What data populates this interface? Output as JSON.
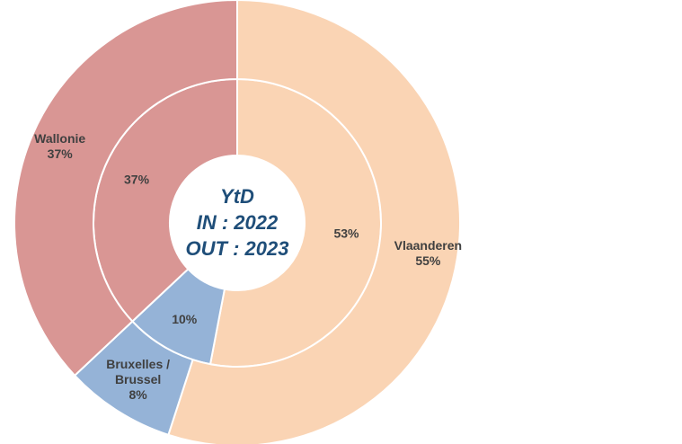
{
  "chart_data": {
    "type": "pie",
    "subtype": "nested-donut",
    "center_text": [
      "YtD",
      "IN : 2022",
      "OUT : 2023"
    ],
    "categories": [
      "Vlaanderen",
      "Bruxelles / Brussel",
      "Wallonie"
    ],
    "colors": {
      "Vlaanderen": "#fad4b4",
      "Bruxelles / Brussel": "#95b3d7",
      "Wallonie": "#d99694"
    },
    "series": [
      {
        "ring": "inner",
        "values": [
          53,
          10,
          37
        ],
        "labels": [
          "53%",
          "10%",
          "37%"
        ]
      },
      {
        "ring": "outer",
        "values": [
          55,
          8,
          37
        ],
        "labels": [
          [
            "Vlaanderen",
            "55%"
          ],
          [
            "Bruxelles /",
            "Brussel",
            "8%"
          ],
          [
            "Wallonie",
            "37%"
          ]
        ]
      }
    ]
  }
}
